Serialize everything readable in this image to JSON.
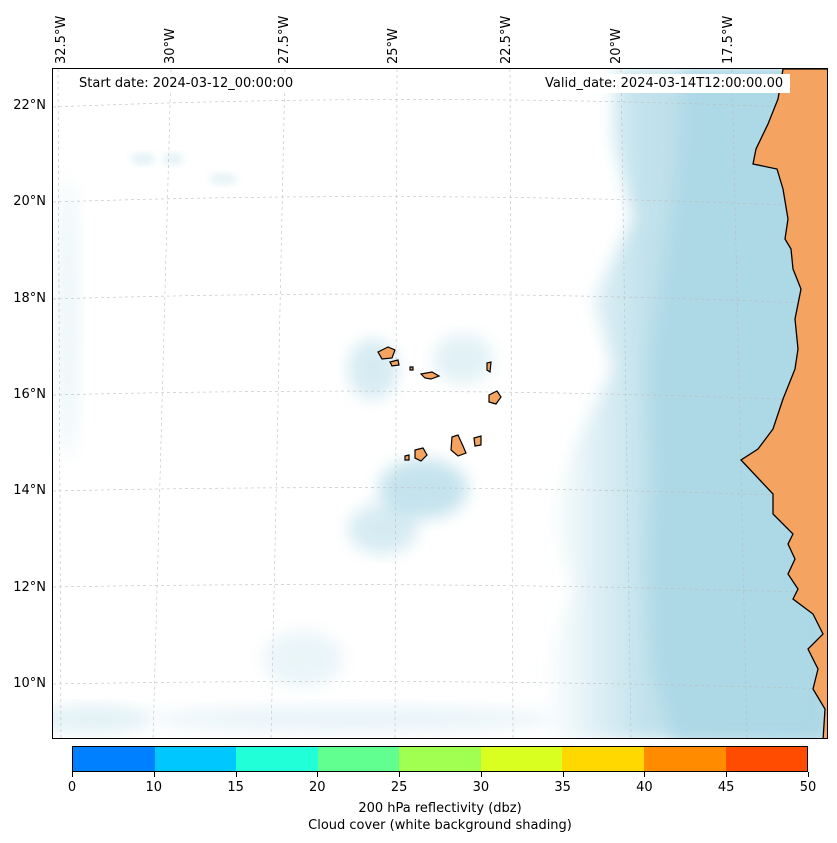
{
  "map": {
    "start_date": "Start date: 2024-03-12_00:00:00",
    "valid_date": "Valid_date: 2024-03-14T12:00:00.00",
    "lon_labels": [
      "32.5°W",
      "30°W",
      "27.5°W",
      "25°W",
      "22.5°W",
      "20°W",
      "17.5°W"
    ],
    "lat_labels": [
      "22°N",
      "20°N",
      "18°N",
      "16°N",
      "14°N",
      "12°N",
      "10°N"
    ],
    "colors": {
      "land": "#f4a460",
      "cloud": "#add8e6",
      "gridline": "#bbbbbb"
    }
  },
  "colorbar": {
    "ticks": [
      "0",
      "10",
      "15",
      "20",
      "25",
      "30",
      "35",
      "40",
      "45",
      "50"
    ],
    "colors": [
      "#0080ff",
      "#00c8ff",
      "#20ffd8",
      "#60ff90",
      "#a0ff50",
      "#d8ff20",
      "#ffd800",
      "#ff8c00",
      "#ff4c00"
    ],
    "label_line1": "200 hPa reflectivity (dbz)",
    "label_line2": "Cloud cover (white background shading)"
  }
}
